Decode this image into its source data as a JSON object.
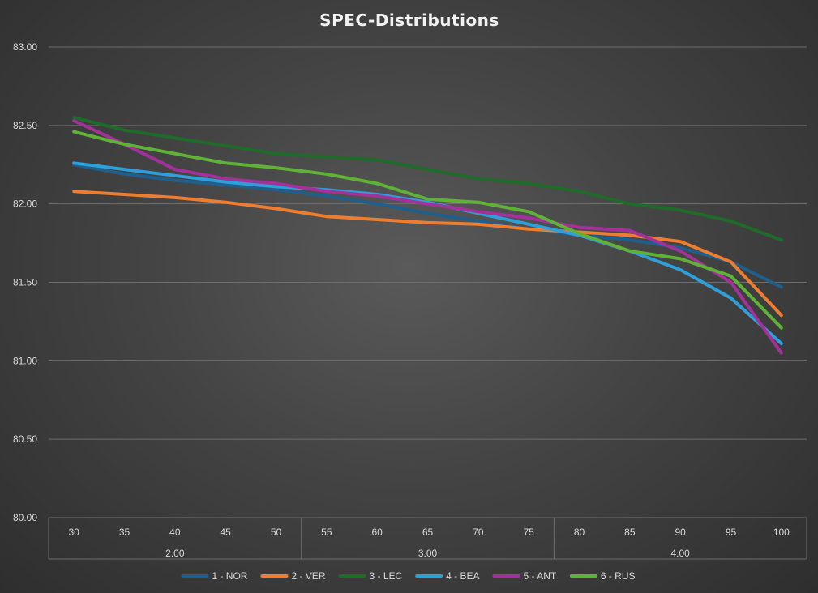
{
  "chart_data": {
    "type": "line",
    "title": "SPEC-Distributions",
    "xlabel": "",
    "ylabel": "",
    "ylim": [
      80.0,
      83.0
    ],
    "y_ticks": [
      "80.00",
      "80.50",
      "81.00",
      "81.50",
      "82.00",
      "82.50",
      "83.00"
    ],
    "y_tick_values": [
      80.0,
      80.5,
      81.0,
      81.5,
      82.0,
      82.5,
      83.0
    ],
    "grid": true,
    "legend_position": "bottom",
    "categories": [
      "30",
      "35",
      "40",
      "45",
      "50",
      "55",
      "60",
      "65",
      "70",
      "75",
      "80",
      "85",
      "90",
      "95",
      "100"
    ],
    "category_groups": [
      {
        "label": "2.00",
        "count": 5
      },
      {
        "label": "3.00",
        "count": 5
      },
      {
        "label": "4.00",
        "count": 5
      }
    ],
    "series": [
      {
        "name": "1 - NOR",
        "color": "#1f5f8b",
        "values": [
          82.25,
          82.19,
          82.15,
          82.12,
          82.09,
          82.05,
          82.0,
          81.94,
          81.89,
          81.84,
          81.8,
          81.77,
          81.72,
          81.63,
          81.47
        ]
      },
      {
        "name": "2 - VER",
        "color": "#ed7d31",
        "values": [
          82.08,
          82.06,
          82.04,
          82.01,
          81.97,
          81.92,
          81.9,
          81.88,
          81.87,
          81.84,
          81.82,
          81.8,
          81.76,
          81.63,
          81.29
        ]
      },
      {
        "name": "3 - LEC",
        "color": "#1e6b2a",
        "values": [
          82.55,
          82.47,
          82.42,
          82.37,
          82.32,
          82.3,
          82.28,
          82.22,
          82.16,
          82.13,
          82.08,
          82.0,
          81.96,
          81.89,
          81.77
        ]
      },
      {
        "name": "4 - BEA",
        "color": "#2e9fd9",
        "values": [
          82.26,
          82.22,
          82.18,
          82.14,
          82.11,
          82.09,
          82.06,
          82.01,
          81.94,
          81.87,
          81.8,
          81.7,
          81.58,
          81.4,
          81.11
        ]
      },
      {
        "name": "5 - ANT",
        "color": "#a3319a",
        "values": [
          82.53,
          82.38,
          82.22,
          82.16,
          82.13,
          82.08,
          82.05,
          82.0,
          81.95,
          81.91,
          81.85,
          81.83,
          81.7,
          81.5,
          81.05
        ]
      },
      {
        "name": "6 - RUS",
        "color": "#5fb137",
        "values": [
          82.46,
          82.38,
          82.32,
          82.26,
          82.23,
          82.19,
          82.13,
          82.03,
          82.01,
          81.95,
          81.81,
          81.7,
          81.65,
          81.54,
          81.21
        ]
      }
    ]
  }
}
